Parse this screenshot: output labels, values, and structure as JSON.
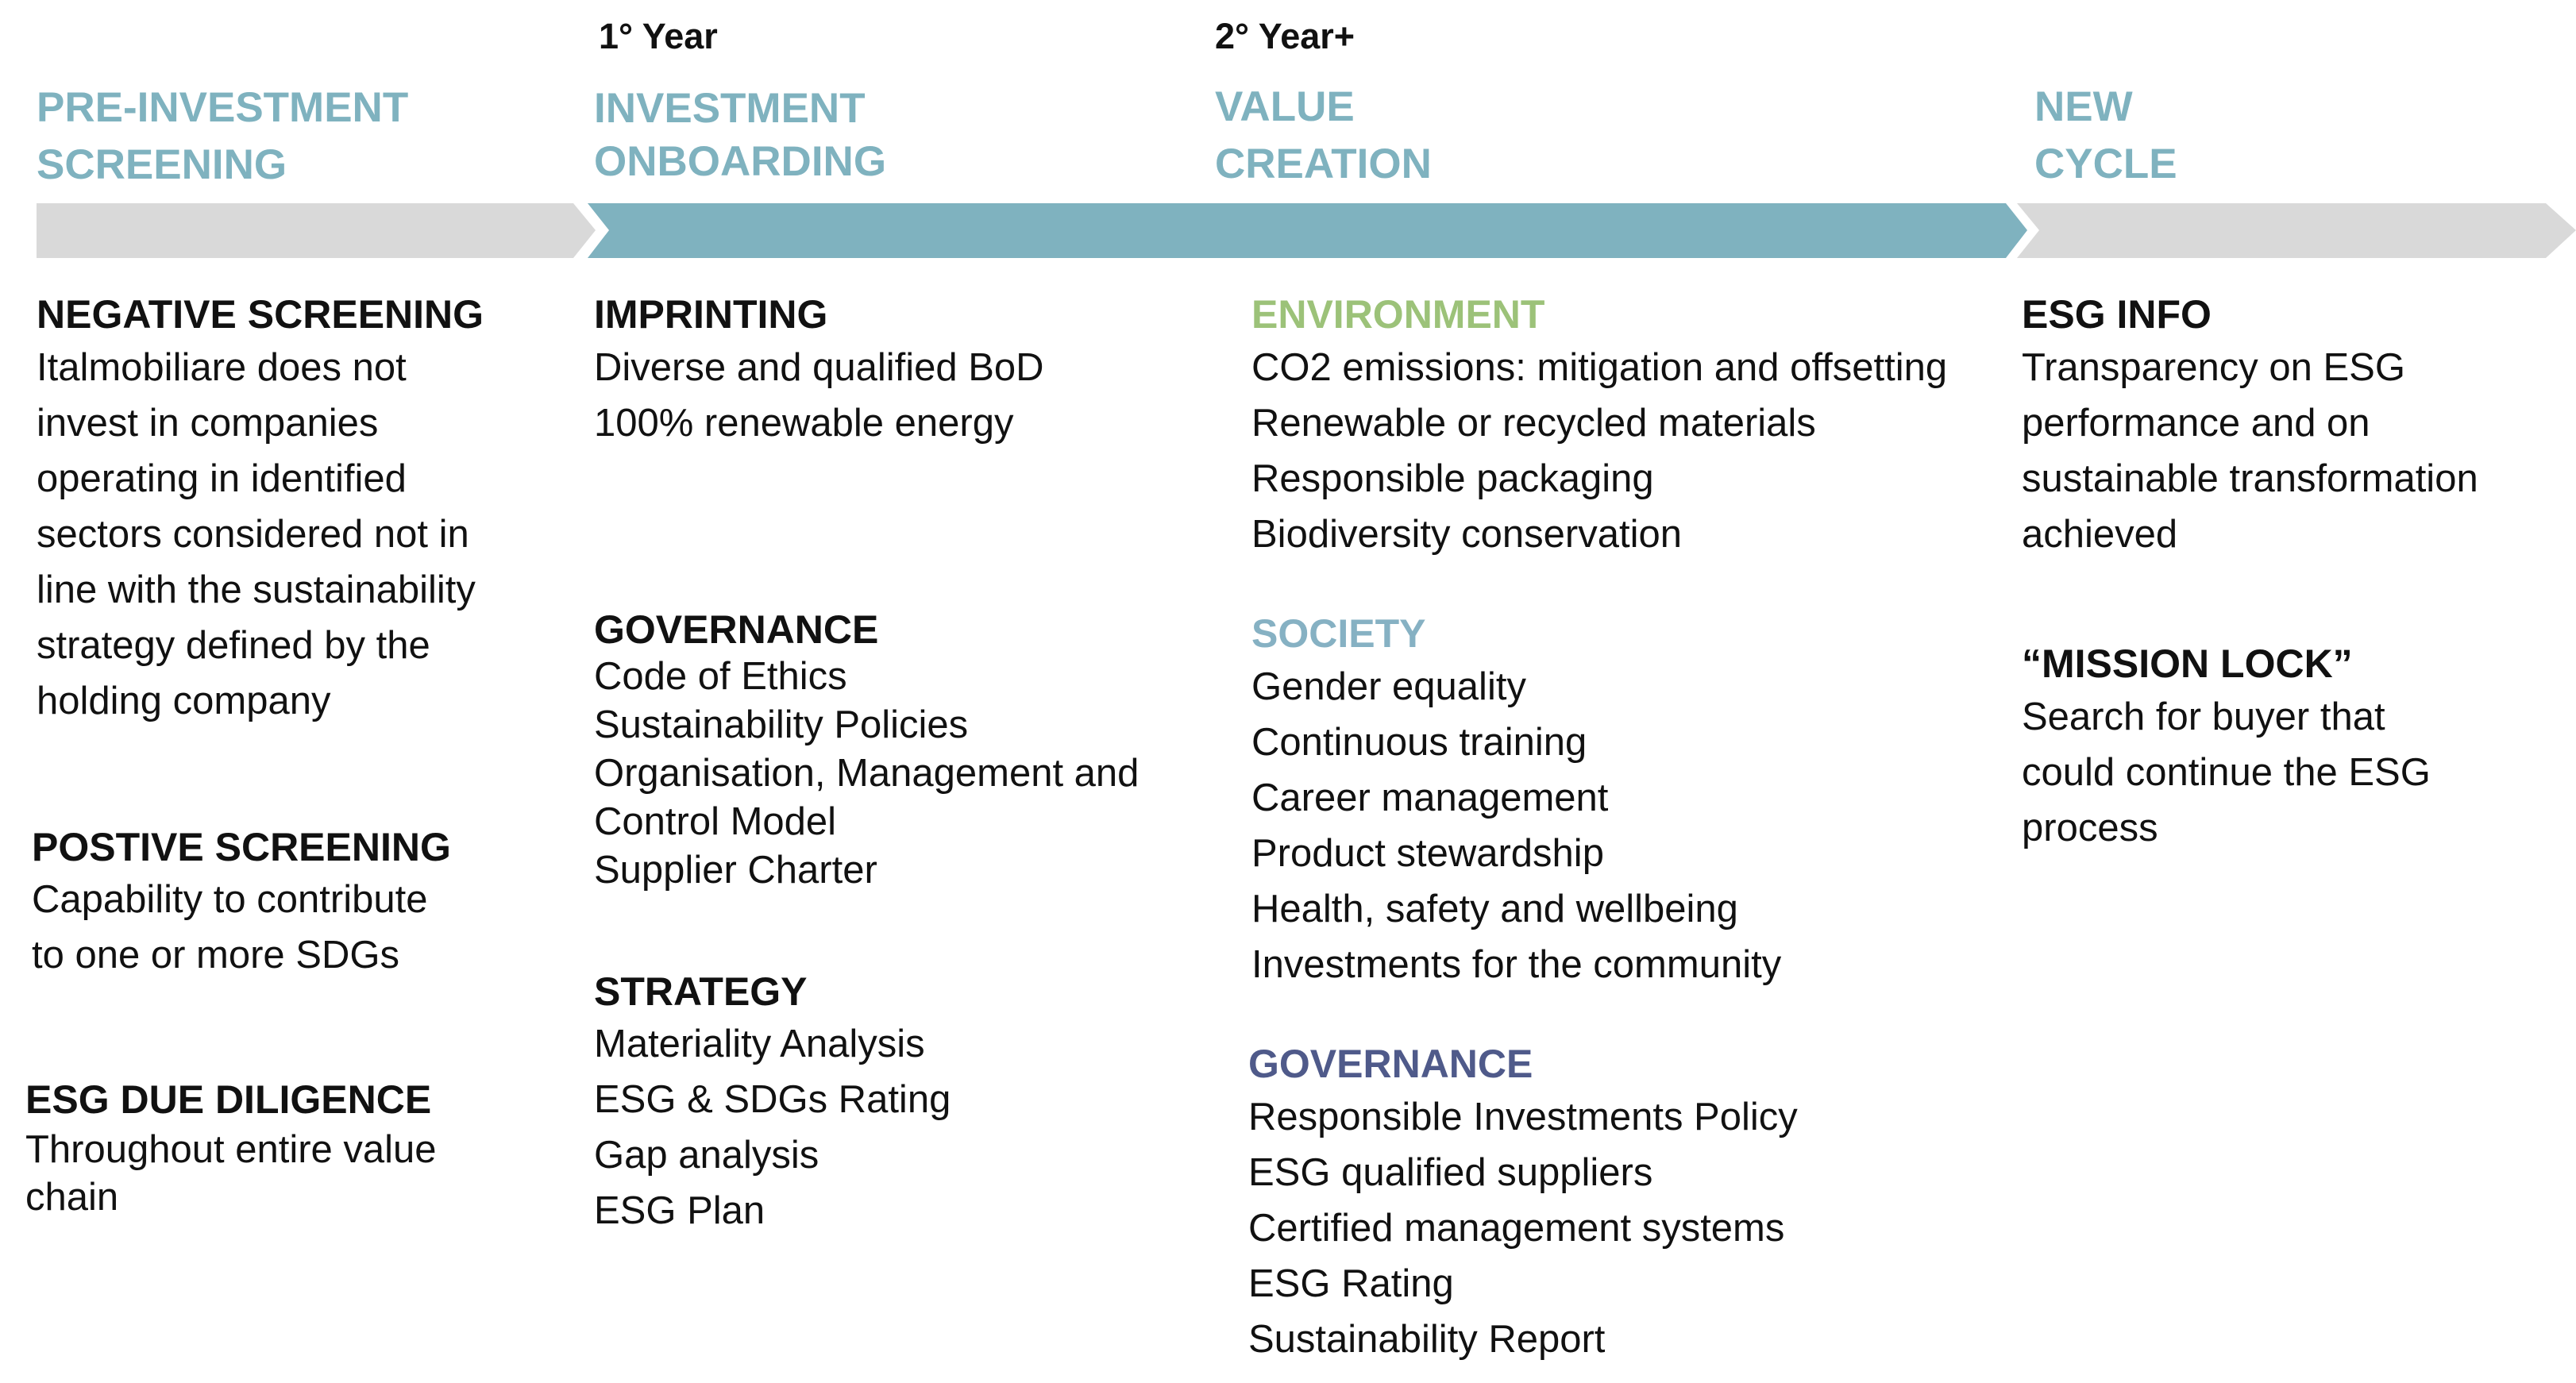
{
  "years": {
    "first": "1° Year",
    "second": "2° Year+"
  },
  "phases": [
    {
      "lines": [
        "PRE-INVESTMENT",
        "SCREENING"
      ]
    },
    {
      "lines": [
        "INVESTMENT",
        "ONBOARDING"
      ]
    },
    {
      "lines": [
        "VALUE",
        "CREATION"
      ]
    },
    {
      "lines": [
        "NEW",
        "CYCLE"
      ]
    }
  ],
  "colors": {
    "phase_title": "#7fb2bf",
    "grey_arrow": "#d9d9d9",
    "teal_arrow": "#7fb2bf",
    "environment": "#9cc279",
    "society": "#86b1c3",
    "governance_dark": "#4f5a8a",
    "text": "#111111"
  },
  "pre_investment": {
    "negative": {
      "heading": "NEGATIVE SCREENING",
      "lines": [
        "Italmobiliare does not",
        "invest in companies",
        "operating in identified",
        "sectors considered not in",
        "line with the sustainability",
        "strategy defined by the",
        "holding company"
      ]
    },
    "positive": {
      "heading": "POSTIVE SCREENING",
      "lines": [
        "Capability to contribute",
        "to one or more SDGs"
      ]
    },
    "due_diligence": {
      "heading": "ESG DUE DILIGENCE",
      "lines": [
        "Throughout entire value",
        "chain"
      ]
    }
  },
  "onboarding": {
    "imprinting": {
      "heading": "IMPRINTING",
      "lines": [
        "Diverse and qualified BoD",
        "100% renewable energy"
      ]
    },
    "governance": {
      "heading": "GOVERNANCE",
      "lines": [
        "Code of Ethics",
        "Sustainability Policies",
        "Organisation, Management and",
        "Control Model",
        "Supplier Charter"
      ]
    },
    "strategy": {
      "heading": "STRATEGY",
      "lines": [
        "Materiality Analysis",
        "ESG & SDGs Rating",
        "Gap analysis",
        "ESG Plan"
      ]
    }
  },
  "value_creation": {
    "environment": {
      "heading": "ENVIRONMENT",
      "lines": [
        "CO2 emissions: mitigation and offsetting",
        "Renewable or recycled materials",
        "Responsible packaging",
        "Biodiversity conservation"
      ]
    },
    "society": {
      "heading": "SOCIETY",
      "lines": [
        "Gender equality",
        "Continuous training",
        "Career management",
        "Product stewardship",
        "Health, safety and wellbeing",
        "Investments for the community"
      ]
    },
    "governance": {
      "heading": "GOVERNANCE",
      "lines": [
        "Responsible Investments Policy",
        "ESG qualified suppliers",
        "Certified management systems",
        "ESG Rating",
        "Sustainability Report"
      ]
    }
  },
  "new_cycle": {
    "esg_info": {
      "heading": "ESG INFO",
      "lines": [
        "Transparency on ESG",
        "performance and on",
        "sustainable transformation",
        "achieved"
      ]
    },
    "mission_lock": {
      "heading": "“MISSION LOCK”",
      "lines": [
        "Search for buyer that",
        "could continue the ESG",
        "process"
      ]
    }
  }
}
